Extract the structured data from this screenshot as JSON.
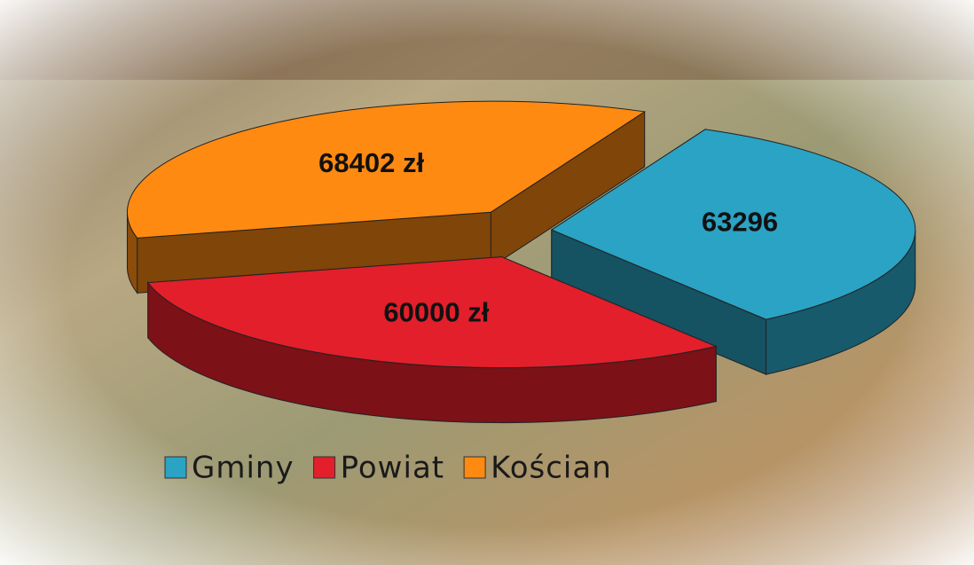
{
  "chart_data": {
    "type": "pie",
    "categories": [
      "Gminy",
      "Powiat",
      "Kościan"
    ],
    "values": [
      63296,
      60000,
      68402
    ],
    "value_labels": [
      "63296",
      "60000 zł",
      "68402 zł"
    ],
    "colors": [
      "#2aa3c4",
      "#e21f2b",
      "#ff8a12"
    ],
    "legend": "bottom"
  }
}
